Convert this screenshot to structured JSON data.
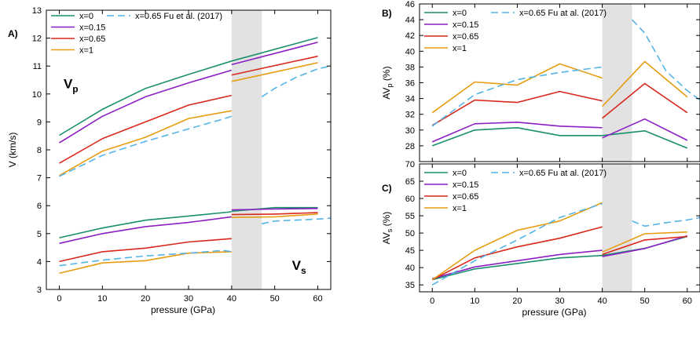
{
  "chart_data": [
    {
      "type": "line",
      "panel_label": "A)",
      "xlabel": "pressure (GPa)",
      "ylabel": "V (km/s)",
      "xlim": [
        -3,
        63
      ],
      "ylim": [
        3,
        13
      ],
      "xticks": [
        0,
        10,
        20,
        30,
        40,
        50,
        60
      ],
      "yticks": [
        3,
        4,
        5,
        6,
        7,
        8,
        9,
        10,
        11,
        12,
        13
      ],
      "grid": false,
      "shaded_region": [
        40,
        47
      ],
      "legend_position": "top",
      "legend": [
        {
          "label": "x=0",
          "color": "#1a8f6f",
          "dashed": false
        },
        {
          "label": "x=0.15",
          "color": "#8b1fc4",
          "dashed": false
        },
        {
          "label": "x=0.65",
          "color": "#d9281c",
          "dashed": false
        },
        {
          "label": "x=1",
          "color": "#e69d12",
          "dashed": false
        },
        {
          "label": "x=0.65 Fu et al. (2017)",
          "color": "#55b4e6",
          "dashed": true
        }
      ],
      "annotations": [
        {
          "main": "V",
          "sub": "p",
          "x": 1,
          "y": 10.2
        },
        {
          "main": "V",
          "sub": "s",
          "x": 54,
          "y": 3.7
        }
      ],
      "series": [
        {
          "color": "#1a8f6f",
          "dashed": false,
          "segments": [
            [
              [
                0,
                8.52
              ],
              [
                10,
                9.45
              ],
              [
                20,
                10.2
              ],
              [
                30,
                10.7
              ],
              [
                40,
                11.18
              ]
            ],
            [
              [
                40,
                11.18
              ],
              [
                60,
                12.02
              ]
            ]
          ]
        },
        {
          "color": "#8b1fc4",
          "dashed": false,
          "segments": [
            [
              [
                0,
                8.25
              ],
              [
                10,
                9.2
              ],
              [
                20,
                9.9
              ],
              [
                30,
                10.4
              ],
              [
                40,
                10.85
              ]
            ],
            [
              [
                40,
                11.05
              ],
              [
                60,
                11.85
              ]
            ]
          ]
        },
        {
          "color": "#d9281c",
          "dashed": false,
          "segments": [
            [
              [
                0,
                7.52
              ],
              [
                10,
                8.4
              ],
              [
                20,
                9.0
              ],
              [
                30,
                9.6
              ],
              [
                40,
                9.95
              ]
            ],
            [
              [
                40,
                10.68
              ],
              [
                60,
                11.35
              ]
            ]
          ]
        },
        {
          "color": "#e69d12",
          "dashed": false,
          "segments": [
            [
              [
                0,
                7.08
              ],
              [
                10,
                7.95
              ],
              [
                20,
                8.45
              ],
              [
                30,
                9.12
              ],
              [
                40,
                9.4
              ]
            ],
            [
              [
                40,
                10.45
              ],
              [
                60,
                11.12
              ]
            ]
          ]
        },
        {
          "color": "#55b4e6",
          "dashed": true,
          "segments": [
            [
              [
                0,
                7.05
              ],
              [
                10,
                7.8
              ],
              [
                20,
                8.3
              ],
              [
                30,
                8.75
              ],
              [
                38,
                9.1
              ],
              [
                40,
                9.2
              ]
            ],
            [
              [
                47,
                9.9
              ],
              [
                50,
                10.2
              ],
              [
                55,
                10.6
              ],
              [
                60,
                10.9
              ],
              [
                63,
                11.0
              ]
            ]
          ]
        },
        {
          "color": "#1a8f6f",
          "dashed": false,
          "segments": [
            [
              [
                0,
                4.85
              ],
              [
                10,
                5.2
              ],
              [
                20,
                5.48
              ],
              [
                30,
                5.63
              ],
              [
                40,
                5.78
              ]
            ],
            [
              [
                40,
                5.8
              ],
              [
                50,
                5.93
              ],
              [
                60,
                5.93
              ]
            ]
          ]
        },
        {
          "color": "#8b1fc4",
          "dashed": false,
          "segments": [
            [
              [
                0,
                4.65
              ],
              [
                10,
                5.0
              ],
              [
                20,
                5.25
              ],
              [
                30,
                5.4
              ],
              [
                40,
                5.6
              ]
            ],
            [
              [
                40,
                5.85
              ],
              [
                50,
                5.88
              ],
              [
                60,
                5.9
              ]
            ]
          ]
        },
        {
          "color": "#d9281c",
          "dashed": false,
          "segments": [
            [
              [
                0,
                4.0
              ],
              [
                10,
                4.35
              ],
              [
                20,
                4.48
              ],
              [
                30,
                4.7
              ],
              [
                40,
                4.82
              ]
            ],
            [
              [
                40,
                5.68
              ],
              [
                50,
                5.7
              ],
              [
                60,
                5.75
              ]
            ]
          ]
        },
        {
          "color": "#e69d12",
          "dashed": false,
          "segments": [
            [
              [
                0,
                3.58
              ],
              [
                10,
                3.95
              ],
              [
                20,
                4.03
              ],
              [
                30,
                4.3
              ],
              [
                40,
                4.35
              ]
            ],
            [
              [
                40,
                5.58
              ],
              [
                50,
                5.6
              ],
              [
                60,
                5.7
              ]
            ]
          ]
        },
        {
          "color": "#55b4e6",
          "dashed": true,
          "segments": [
            [
              [
                0,
                3.85
              ],
              [
                10,
                4.05
              ],
              [
                20,
                4.2
              ],
              [
                30,
                4.3
              ],
              [
                38,
                4.4
              ],
              [
                40,
                4.35
              ]
            ],
            [
              [
                47,
                5.35
              ],
              [
                50,
                5.45
              ],
              [
                60,
                5.52
              ],
              [
                63,
                5.55
              ]
            ]
          ]
        }
      ]
    },
    {
      "type": "line",
      "panel_label": "B)",
      "xlabel": "",
      "ylabel": "AVp (%)",
      "ylabel_main": "AV",
      "ylabel_sub": "p",
      "ylabel_unit": " (%)",
      "xlim": [
        -3,
        63
      ],
      "ylim": [
        26,
        46
      ],
      "xticks": [
        0,
        10,
        20,
        30,
        40,
        50,
        60
      ],
      "yticks": [
        28,
        30,
        32,
        34,
        36,
        38,
        40,
        42,
        44,
        46
      ],
      "grid": false,
      "shaded_region": [
        40,
        47
      ],
      "legend_position": "top",
      "legend": [
        {
          "label": "x=0",
          "color": "#1a8f6f",
          "dashed": false
        },
        {
          "label": "x=0.15",
          "color": "#8b1fc4",
          "dashed": false
        },
        {
          "label": "x=0.65",
          "color": "#d9281c",
          "dashed": false
        },
        {
          "label": "x=1",
          "color": "#e69d12",
          "dashed": false
        },
        {
          "label": "x=0.65 Fu at al. (2017)",
          "color": "#55b4e6",
          "dashed": true
        }
      ],
      "series": [
        {
          "color": "#1a8f6f",
          "dashed": false,
          "segments": [
            [
              [
                0,
                28.0
              ],
              [
                10,
                30.0
              ],
              [
                20,
                30.3
              ],
              [
                30,
                29.3
              ],
              [
                40,
                29.3
              ]
            ],
            [
              [
                40,
                29.3
              ],
              [
                50,
                29.9
              ],
              [
                60,
                27.7
              ]
            ]
          ]
        },
        {
          "color": "#8b1fc4",
          "dashed": false,
          "segments": [
            [
              [
                0,
                28.5
              ],
              [
                10,
                30.8
              ],
              [
                20,
                31.0
              ],
              [
                30,
                30.5
              ],
              [
                40,
                30.3
              ]
            ],
            [
              [
                40,
                29.0
              ],
              [
                50,
                31.4
              ],
              [
                60,
                28.7
              ]
            ]
          ]
        },
        {
          "color": "#d9281c",
          "dashed": false,
          "segments": [
            [
              [
                0,
                30.6
              ],
              [
                10,
                33.8
              ],
              [
                20,
                33.5
              ],
              [
                30,
                34.9
              ],
              [
                40,
                33.7
              ]
            ],
            [
              [
                40,
                31.5
              ],
              [
                50,
                35.9
              ],
              [
                60,
                32.2
              ]
            ]
          ]
        },
        {
          "color": "#e69d12",
          "dashed": false,
          "segments": [
            [
              [
                0,
                32.2
              ],
              [
                10,
                36.1
              ],
              [
                20,
                35.7
              ],
              [
                30,
                38.4
              ],
              [
                40,
                36.6
              ]
            ],
            [
              [
                40,
                33.0
              ],
              [
                50,
                38.7
              ],
              [
                60,
                34.2
              ]
            ]
          ]
        },
        {
          "color": "#55b4e6",
          "dashed": true,
          "segments": [
            [
              [
                0,
                30.5
              ],
              [
                10,
                34.5
              ],
              [
                20,
                36.4
              ],
              [
                30,
                37.3
              ],
              [
                40,
                38.0
              ]
            ],
            [
              [
                47,
                44.0
              ],
              [
                50,
                42.3
              ],
              [
                55,
                37.5
              ],
              [
                60,
                35.0
              ],
              [
                63,
                33.8
              ]
            ]
          ]
        }
      ]
    },
    {
      "type": "line",
      "panel_label": "C)",
      "xlabel": "pressure (GPa)",
      "ylabel": "AVs (%)",
      "ylabel_main": "AV",
      "ylabel_sub": "s",
      "ylabel_unit": " (%)",
      "xlim": [
        -3,
        63
      ],
      "ylim": [
        33,
        70
      ],
      "xticks": [
        0,
        10,
        20,
        30,
        40,
        50,
        60
      ],
      "yticks": [
        35,
        40,
        45,
        50,
        55,
        60,
        65,
        70
      ],
      "grid": false,
      "shaded_region": [
        40,
        47
      ],
      "legend_position": "top",
      "legend": [
        {
          "label": "x=0",
          "color": "#1a8f6f",
          "dashed": false
        },
        {
          "label": "x=0.15",
          "color": "#8b1fc4",
          "dashed": false
        },
        {
          "label": "x=0.65",
          "color": "#d9281c",
          "dashed": false
        },
        {
          "label": "x=1",
          "color": "#e69d12",
          "dashed": false
        },
        {
          "label": "x=0.65 Fu at al. (2017)",
          "color": "#55b4e6",
          "dashed": true
        }
      ],
      "series": [
        {
          "color": "#1a8f6f",
          "dashed": false,
          "segments": [
            [
              [
                0,
                36.5
              ],
              [
                10,
                39.6
              ],
              [
                20,
                41.2
              ],
              [
                30,
                42.8
              ],
              [
                40,
                43.5
              ]
            ],
            [
              [
                40,
                43.5
              ],
              [
                50,
                45.6
              ],
              [
                60,
                49.0
              ]
            ]
          ]
        },
        {
          "color": "#8b1fc4",
          "dashed": false,
          "segments": [
            [
              [
                0,
                36.8
              ],
              [
                10,
                40.2
              ],
              [
                20,
                42.0
              ],
              [
                30,
                43.8
              ],
              [
                40,
                45.0
              ]
            ],
            [
              [
                40,
                43.2
              ],
              [
                50,
                45.5
              ],
              [
                60,
                49.2
              ]
            ]
          ]
        },
        {
          "color": "#d9281c",
          "dashed": false,
          "segments": [
            [
              [
                0,
                36.5
              ],
              [
                10,
                42.8
              ],
              [
                20,
                46.0
              ],
              [
                30,
                48.5
              ],
              [
                40,
                51.8
              ]
            ],
            [
              [
                40,
                43.8
              ],
              [
                50,
                48.0
              ],
              [
                60,
                49.0
              ]
            ]
          ]
        },
        {
          "color": "#e69d12",
          "dashed": false,
          "segments": [
            [
              [
                0,
                36.5
              ],
              [
                10,
                45.0
              ],
              [
                20,
                50.8
              ],
              [
                30,
                53.5
              ],
              [
                40,
                58.8
              ]
            ],
            [
              [
                40,
                44.5
              ],
              [
                50,
                49.8
              ],
              [
                60,
                50.3
              ]
            ]
          ]
        },
        {
          "color": "#55b4e6",
          "dashed": true,
          "segments": [
            [
              [
                0,
                35.0
              ],
              [
                10,
                42.0
              ],
              [
                20,
                48.0
              ],
              [
                30,
                54.5
              ],
              [
                40,
                58.5
              ]
            ],
            [
              [
                47,
                53.5
              ],
              [
                50,
                52.0
              ],
              [
                55,
                53.0
              ],
              [
                60,
                53.8
              ],
              [
                63,
                54.5
              ]
            ]
          ]
        }
      ]
    }
  ]
}
